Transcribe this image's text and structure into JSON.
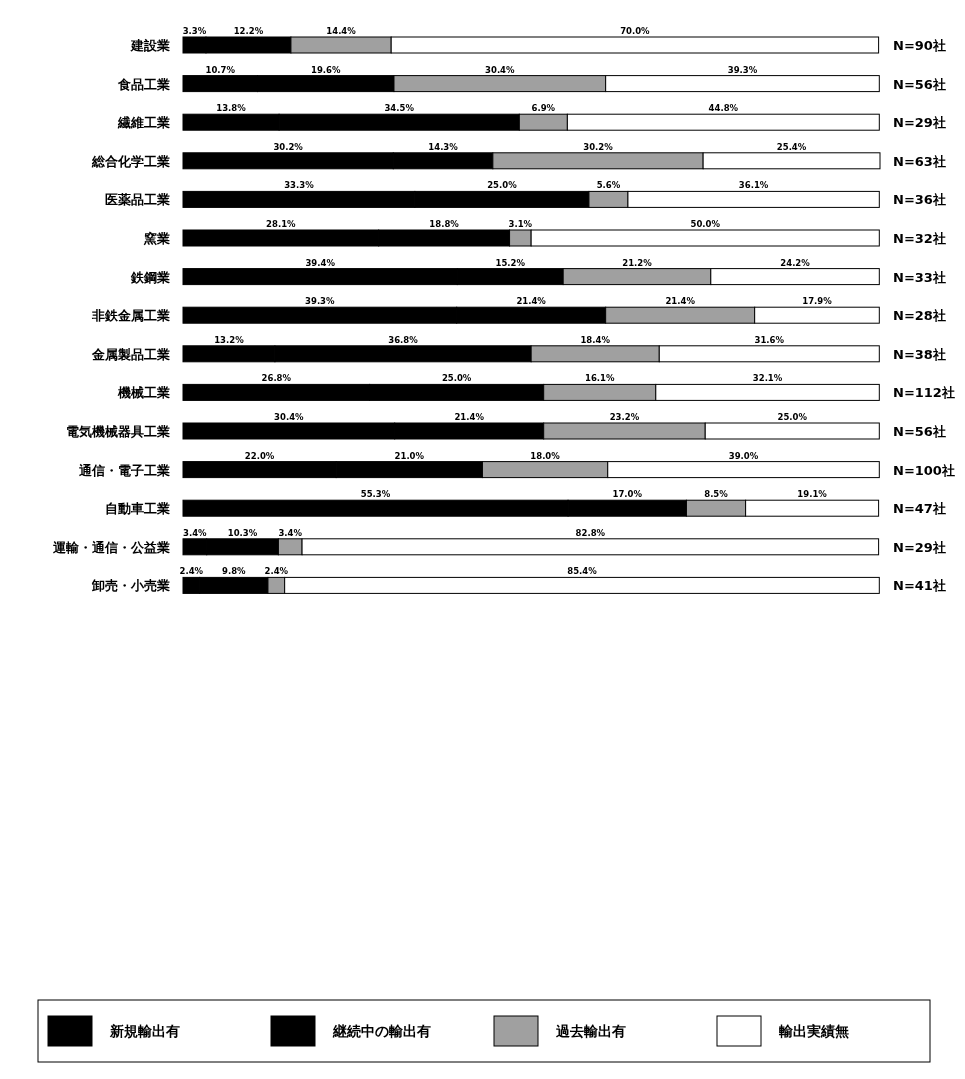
{
  "chart_data": {
    "type": "bar",
    "orientation": "horizontal",
    "stacked": true,
    "legend": "bottom",
    "categories": [
      "建設業",
      "食品工業",
      "繊維工業",
      "総合化学工業",
      "医薬品工業",
      "窯業",
      "鉄鋼業",
      "非鉄金属工業",
      "金属製品工業",
      "機械工業",
      "電気機械器具工業",
      "通信・電子工業",
      "自動車工業",
      "運輸・通信・公益業",
      "卸売・小売業"
    ],
    "series": [
      {
        "name": "新規輸出有",
        "color": "#000000",
        "values": [
          3.3,
          10.7,
          13.8,
          30.2,
          33.3,
          28.1,
          39.4,
          39.3,
          13.2,
          26.8,
          30.4,
          22.0,
          55.3,
          3.4,
          2.4
        ],
        "value_labels": [
          "3.3%",
          "10.7%",
          "13.8%",
          "30.2%",
          "33.3%",
          "28.1%",
          "39.4%",
          "39.3%",
          "13.2%",
          "26.8%",
          "30.4%",
          "22.0%",
          "55.3%",
          "3.4%",
          "2.4%"
        ]
      },
      {
        "name": "継続中の輸出有",
        "color": "#000000",
        "values": [
          12.2,
          19.6,
          34.5,
          14.3,
          25.0,
          18.8,
          15.2,
          21.4,
          36.8,
          25.0,
          21.4,
          21.0,
          17.0,
          10.3,
          9.8
        ],
        "value_labels": [
          "12.2%",
          "19.6%",
          "34.5%",
          "14.3%",
          "25.0%",
          "18.8%",
          "15.2%",
          "21.4%",
          "36.8%",
          "25.0%",
          "21.4%",
          "21.0%",
          "17.0%",
          "10.3%",
          "9.8%"
        ]
      },
      {
        "name": "過去輸出有",
        "color": "#a0a0a0",
        "values": [
          14.4,
          30.4,
          6.9,
          30.2,
          5.6,
          3.1,
          21.2,
          21.4,
          18.4,
          16.1,
          23.2,
          18.0,
          8.5,
          3.4,
          2.4
        ],
        "value_labels": [
          "14.4%",
          "30.4%",
          "6.9%",
          "30.2%",
          "5.6%",
          "3.1%",
          "21.2%",
          "21.4%",
          "18.4%",
          "16.1%",
          "23.2%",
          "18.0%",
          "8.5%",
          "3.4%",
          "2.4%"
        ]
      },
      {
        "name": "輸出実績無",
        "color": "#ffffff",
        "values": [
          70.0,
          39.3,
          44.8,
          25.4,
          36.1,
          50.0,
          24.2,
          17.9,
          31.6,
          32.1,
          25.0,
          39.0,
          19.1,
          82.8,
          85.4
        ],
        "value_labels": [
          "70.0%",
          "39.3%",
          "44.8%",
          "25.4%",
          "36.1%",
          "50.0%",
          "24.2%",
          "17.9%",
          "31.6%",
          "32.1%",
          "25.0%",
          "39.0%",
          "19.1%",
          "82.8%",
          "85.4%"
        ]
      }
    ],
    "annotations": [
      "N=90社",
      "N=56社",
      "N=29社",
      "N=63社",
      "N=36社",
      "N=32社",
      "N=33社",
      "N=28社",
      "N=38社",
      "N=112社",
      "N=56社",
      "N=100社",
      "N=47社",
      "N=29社",
      "N=41社"
    ]
  }
}
